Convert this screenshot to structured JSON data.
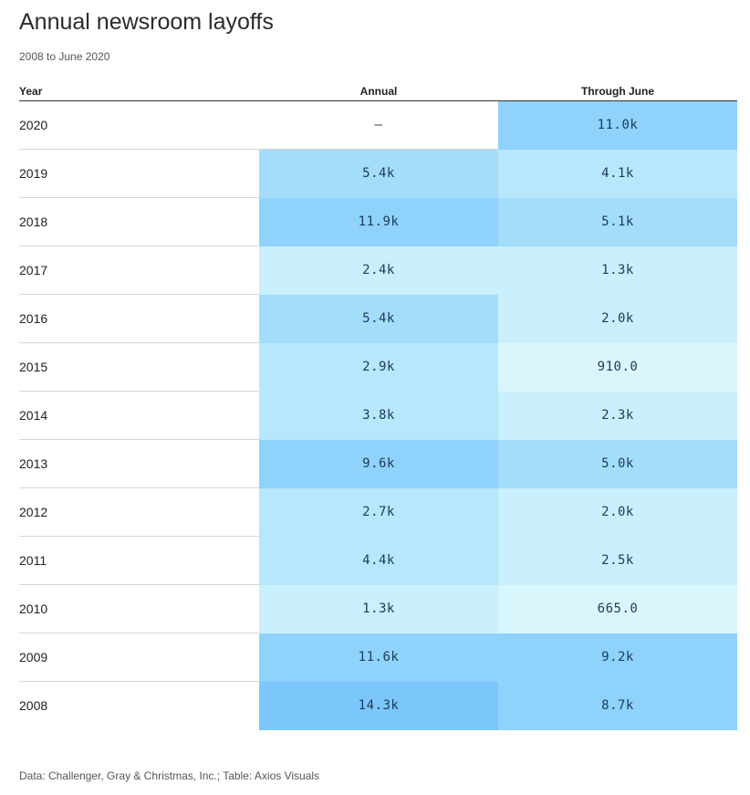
{
  "title": "Annual newsroom layoffs",
  "subtitle": "2008 to June 2020",
  "source": "Data: Challenger, Gray & Christmas, Inc.; Table: Axios Visuals",
  "colors": {
    "scale": [
      "#d9f6fc",
      "#c9f0fc",
      "#b6e7fb",
      "#a3ddfa",
      "#8fd2fb",
      "#7bc7fb"
    ],
    "value_text": "#1e3a5a"
  },
  "chart_data": {
    "type": "table",
    "title": "Annual newsroom layoffs",
    "subtitle": "2008 to June 2020",
    "columns": [
      "Year",
      "Annual",
      "Through June"
    ],
    "rows": [
      {
        "year": "2020",
        "annual": "–",
        "annual_value": null,
        "june": "11.0k",
        "june_value": 11000
      },
      {
        "year": "2019",
        "annual": "5.4k",
        "annual_value": 5400,
        "june": "4.1k",
        "june_value": 4100
      },
      {
        "year": "2018",
        "annual": "11.9k",
        "annual_value": 11900,
        "june": "5.1k",
        "june_value": 5100
      },
      {
        "year": "2017",
        "annual": "2.4k",
        "annual_value": 2400,
        "june": "1.3k",
        "june_value": 1300
      },
      {
        "year": "2016",
        "annual": "5.4k",
        "annual_value": 5400,
        "june": "2.0k",
        "june_value": 2000
      },
      {
        "year": "2015",
        "annual": "2.9k",
        "annual_value": 2900,
        "june": "910.0",
        "june_value": 910
      },
      {
        "year": "2014",
        "annual": "3.8k",
        "annual_value": 3800,
        "june": "2.3k",
        "june_value": 2300
      },
      {
        "year": "2013",
        "annual": "9.6k",
        "annual_value": 9600,
        "june": "5.0k",
        "june_value": 5000
      },
      {
        "year": "2012",
        "annual": "2.7k",
        "annual_value": 2700,
        "june": "2.0k",
        "june_value": 2000
      },
      {
        "year": "2011",
        "annual": "4.4k",
        "annual_value": 4400,
        "june": "2.5k",
        "june_value": 2500
      },
      {
        "year": "2010",
        "annual": "1.3k",
        "annual_value": 1300,
        "june": "665.0",
        "june_value": 665
      },
      {
        "year": "2009",
        "annual": "11.6k",
        "annual_value": 11600,
        "june": "9.2k",
        "june_value": 9200
      },
      {
        "year": "2008",
        "annual": "14.3k",
        "annual_value": 14300,
        "june": "8.7k",
        "june_value": 8700
      }
    ]
  }
}
